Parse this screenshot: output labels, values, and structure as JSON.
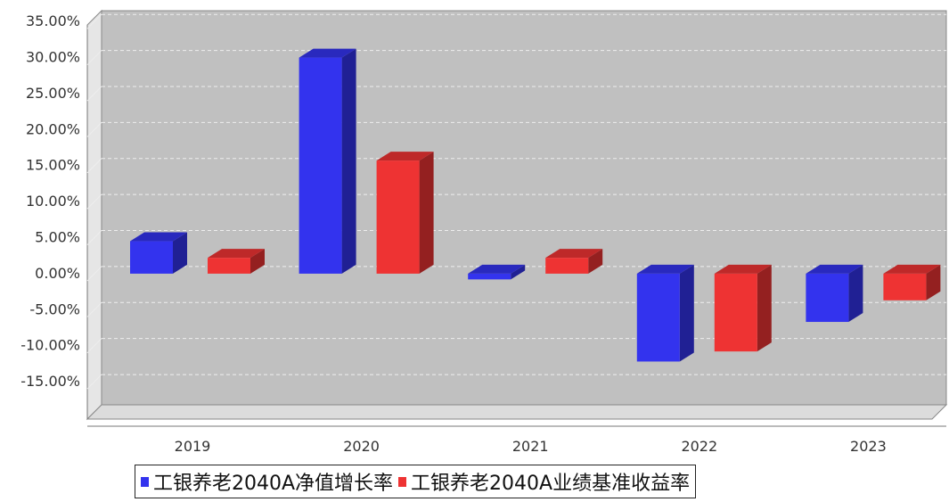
{
  "chart_data": {
    "type": "bar",
    "categories": [
      "2019",
      "2020",
      "2021",
      "2022",
      "2023"
    ],
    "series": [
      {
        "name": "工银养老2040A净值增长率",
        "color": "#3333ee",
        "values": [
          4.5,
          30.0,
          -0.8,
          -12.2,
          -6.7
        ]
      },
      {
        "name": "工银养老2040A业绩基准收益率",
        "color": "#ee3333",
        "values": [
          2.2,
          15.7,
          2.2,
          -10.8,
          -3.7
        ]
      }
    ],
    "ylim": [
      -19.2,
      37.5
    ],
    "yticks": [
      "35.00%",
      "30.00%",
      "25.00%",
      "20.00%",
      "15.00%",
      "10.00%",
      "5.00%",
      "0.00%",
      "-5.00%",
      "-10.00%",
      "-15.00%"
    ],
    "ytick_values": [
      35,
      30,
      25,
      20,
      15,
      10,
      5,
      0,
      -5,
      -10,
      -15
    ],
    "grid": true,
    "legend_position": "bottom"
  }
}
